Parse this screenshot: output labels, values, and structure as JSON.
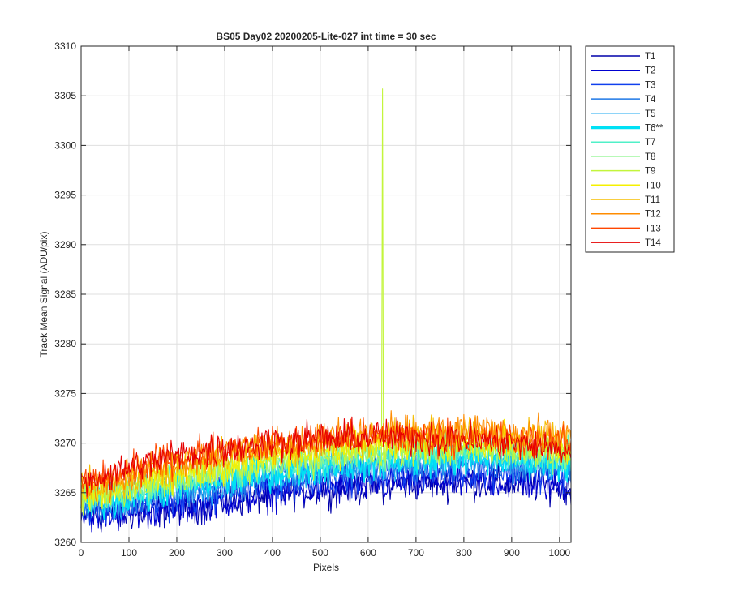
{
  "figure": {
    "title": "BS05 Day02 20200205-Lite-027 int time = 30 sec"
  },
  "chart_data": {
    "type": "line",
    "title": "BS05 Day02 20200205-Lite-027 int time = 30 sec",
    "xlabel": "Pixels",
    "ylabel": "Track Mean Signal (ADU/pix)",
    "xlim": [
      0,
      1024
    ],
    "ylim": [
      3260,
      3310
    ],
    "xticks": [
      0,
      100,
      200,
      300,
      400,
      500,
      600,
      700,
      800,
      900,
      1000
    ],
    "yticks": [
      3260,
      3265,
      3270,
      3275,
      3280,
      3285,
      3290,
      3295,
      3300,
      3305,
      3310
    ],
    "grid": true,
    "legend_placement": "outside-top-right",
    "x": [
      0,
      50,
      100,
      150,
      200,
      250,
      300,
      350,
      400,
      450,
      500,
      550,
      600,
      650,
      700,
      750,
      800,
      850,
      900,
      950,
      1000,
      1024
    ],
    "series": [
      {
        "name": "T1",
        "color": "#0000aa",
        "width": 1.5,
        "values": [
          3262.8,
          3262.6,
          3262.9,
          3263.1,
          3263.4,
          3263.7,
          3264.1,
          3264.4,
          3264.8,
          3265.1,
          3265.3,
          3265.4,
          3265.6,
          3265.8,
          3265.9,
          3266.0,
          3266.0,
          3266.0,
          3265.9,
          3265.8,
          3265.7,
          3265.5
        ]
      },
      {
        "name": "T2",
        "color": "#0000d0",
        "width": 1.5,
        "values": [
          3262.9,
          3262.8,
          3263.0,
          3263.2,
          3263.5,
          3263.8,
          3264.2,
          3264.5,
          3264.9,
          3265.2,
          3265.4,
          3265.5,
          3265.7,
          3265.9,
          3266.0,
          3266.1,
          3266.1,
          3266.1,
          3266.0,
          3265.9,
          3265.8,
          3265.6
        ]
      },
      {
        "name": "T3",
        "color": "#1040ee",
        "width": 1.5,
        "values": [
          3263.3,
          3263.3,
          3263.6,
          3263.9,
          3264.2,
          3264.6,
          3265.0,
          3265.4,
          3265.8,
          3266.1,
          3266.4,
          3266.6,
          3266.8,
          3267.0,
          3267.1,
          3267.2,
          3267.2,
          3267.2,
          3267.1,
          3267.0,
          3266.8,
          3266.6
        ]
      },
      {
        "name": "T4",
        "color": "#1e78e6",
        "width": 1.5,
        "values": [
          3263.6,
          3263.7,
          3264.1,
          3264.5,
          3264.9,
          3265.3,
          3265.7,
          3266.1,
          3266.5,
          3266.8,
          3267.1,
          3267.3,
          3267.5,
          3267.7,
          3267.8,
          3267.9,
          3267.9,
          3267.9,
          3267.8,
          3267.7,
          3267.5,
          3267.3
        ]
      },
      {
        "name": "T5",
        "color": "#1eaaf0",
        "width": 1.5,
        "values": [
          3263.9,
          3264.0,
          3264.4,
          3264.8,
          3265.2,
          3265.6,
          3266.0,
          3266.4,
          3266.8,
          3267.1,
          3267.4,
          3267.6,
          3267.8,
          3268.0,
          3268.1,
          3268.2,
          3268.2,
          3268.2,
          3268.1,
          3268.0,
          3267.8,
          3267.6
        ]
      },
      {
        "name": "T6**",
        "color": "#00e1f5",
        "width": 3.5,
        "values": [
          3264.0,
          3264.2,
          3264.6,
          3265.0,
          3265.4,
          3265.8,
          3266.2,
          3266.6,
          3267.0,
          3267.3,
          3267.6,
          3267.8,
          3268.0,
          3268.2,
          3268.3,
          3268.4,
          3268.4,
          3268.4,
          3268.3,
          3268.2,
          3268.0,
          3267.8
        ]
      },
      {
        "name": "T7",
        "color": "#50f0c8",
        "width": 1.5,
        "values": [
          3264.3,
          3264.6,
          3265.1,
          3265.6,
          3266.1,
          3266.6,
          3267.0,
          3267.4,
          3267.8,
          3268.1,
          3268.4,
          3268.6,
          3268.8,
          3269.0,
          3269.1,
          3269.2,
          3269.2,
          3269.2,
          3269.1,
          3269.0,
          3268.8,
          3268.6
        ]
      },
      {
        "name": "T8",
        "color": "#8cf58c",
        "width": 1.5,
        "values": [
          3264.5,
          3264.8,
          3265.3,
          3265.8,
          3266.3,
          3266.8,
          3267.2,
          3267.6,
          3268.0,
          3268.3,
          3268.6,
          3268.8,
          3269.0,
          3269.2,
          3269.3,
          3269.4,
          3269.4,
          3269.4,
          3269.3,
          3269.2,
          3269.0,
          3268.8
        ]
      },
      {
        "name": "T9",
        "color": "#c3f53c",
        "width": 1.5,
        "spike": {
          "x": 630,
          "y": 3305.7
        },
        "values": [
          3264.6,
          3264.9,
          3265.4,
          3265.9,
          3266.4,
          3266.9,
          3267.3,
          3267.7,
          3268.1,
          3268.4,
          3268.7,
          3268.9,
          3269.1,
          3269.3,
          3269.4,
          3269.5,
          3269.5,
          3269.5,
          3269.4,
          3269.3,
          3269.1,
          3268.9
        ]
      },
      {
        "name": "T10",
        "color": "#f5f000",
        "width": 1.5,
        "values": [
          3264.8,
          3265.2,
          3265.8,
          3266.4,
          3266.9,
          3267.4,
          3267.8,
          3268.2,
          3268.6,
          3268.9,
          3269.2,
          3269.4,
          3269.6,
          3269.8,
          3269.9,
          3270.0,
          3270.0,
          3270.0,
          3269.9,
          3269.8,
          3269.6,
          3269.4
        ]
      },
      {
        "name": "T11",
        "color": "#f5be00",
        "width": 1.5,
        "values": [
          3265.2,
          3265.7,
          3266.4,
          3267.1,
          3267.7,
          3268.2,
          3268.7,
          3269.1,
          3269.5,
          3269.8,
          3270.1,
          3270.3,
          3270.5,
          3270.7,
          3270.8,
          3270.9,
          3270.9,
          3270.9,
          3270.8,
          3270.7,
          3270.5,
          3270.3
        ]
      },
      {
        "name": "T12",
        "color": "#ff8c00",
        "width": 1.5,
        "values": [
          3265.5,
          3266.1,
          3266.9,
          3267.6,
          3268.2,
          3268.7,
          3269.1,
          3269.5,
          3269.8,
          3270.1,
          3270.4,
          3270.6,
          3270.8,
          3271.0,
          3271.1,
          3271.2,
          3271.2,
          3271.2,
          3271.1,
          3271.0,
          3270.8,
          3270.6
        ]
      },
      {
        "name": "T13",
        "color": "#ff4600",
        "width": 1.5,
        "values": [
          3265.8,
          3266.4,
          3267.2,
          3267.9,
          3268.5,
          3268.9,
          3269.3,
          3269.6,
          3269.9,
          3270.1,
          3270.3,
          3270.4,
          3270.5,
          3270.6,
          3270.6,
          3270.6,
          3270.5,
          3270.4,
          3270.3,
          3270.1,
          3269.9,
          3269.7
        ]
      },
      {
        "name": "T14",
        "color": "#e60000",
        "width": 1.5,
        "values": [
          3266.1,
          3266.7,
          3267.5,
          3268.2,
          3268.7,
          3269.1,
          3269.5,
          3269.8,
          3270.1,
          3270.3,
          3270.4,
          3270.5,
          3270.6,
          3270.6,
          3270.6,
          3270.5,
          3270.4,
          3270.2,
          3270.0,
          3269.7,
          3269.4,
          3269.2
        ]
      }
    ]
  }
}
